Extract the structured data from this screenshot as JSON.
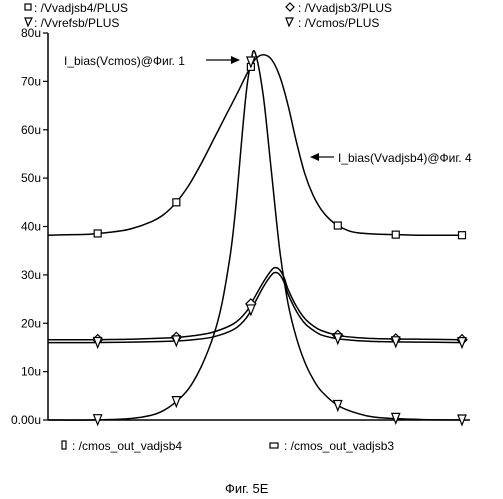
{
  "figure": {
    "caption": "Фиг. 5E"
  },
  "chart_data": {
    "type": "line",
    "ylim": [
      0,
      80
    ],
    "xlim": [
      0,
      1
    ],
    "y_ticks": [
      0,
      10,
      20,
      30,
      40,
      50,
      60,
      70,
      80
    ],
    "y_tick_labels": [
      "0.00u",
      "10u",
      "20u",
      "30u",
      "40u",
      "50u",
      "60u",
      "70u",
      "80u"
    ],
    "legend_top": [
      {
        "marker": "square",
        "label": ": /Vvadjsb4/PLUS"
      },
      {
        "marker": "diamond",
        "label": ": /Vvadjsb3/PLUS"
      },
      {
        "marker": "triangle-down",
        "label": ": /Vvrefsb/PLUS"
      },
      {
        "marker": "triangle-down",
        "label": ": /Vcmos/PLUS"
      }
    ],
    "legend_bottom": [
      {
        "marker": "rect-tall",
        "label": ": /cmos_out_vadjsb4"
      },
      {
        "marker": "rect-wide",
        "label": ": /cmos_out_vadjsb3"
      }
    ],
    "annotations": [
      {
        "text": "I_bias(Vcmos)@Фиг. 1",
        "target_series": "Vcmos"
      },
      {
        "text": "I_bias(Vvadjsb4)@Фиг. 4",
        "target_series": "Vvadjsb4"
      }
    ],
    "series": [
      {
        "name": "Vvadjsb4",
        "marker": "square",
        "x": [
          0.0,
          0.05,
          0.1,
          0.15,
          0.2,
          0.25,
          0.28,
          0.31,
          0.34,
          0.37,
          0.4,
          0.43,
          0.46,
          0.48,
          0.5,
          0.52,
          0.54,
          0.56,
          0.58,
          0.6,
          0.62,
          0.64,
          0.66,
          0.68,
          0.7,
          0.73,
          0.76,
          0.8,
          0.85,
          0.9,
          0.95,
          1.0
        ],
        "y": [
          38.2,
          38.3,
          38.4,
          38.8,
          39.5,
          41.0,
          42.5,
          45.0,
          48.5,
          53.0,
          58.0,
          63.0,
          68.0,
          71.5,
          74.5,
          75.5,
          74.5,
          71.0,
          65.0,
          57.5,
          51.0,
          46.5,
          43.5,
          41.5,
          40.2,
          39.0,
          38.6,
          38.4,
          38.3,
          38.2,
          38.2,
          38.2
        ],
        "marker_x": [
          0.12,
          0.31,
          0.49,
          0.7,
          0.84,
          1.0
        ]
      },
      {
        "name": "Vvadjsb3",
        "marker": "diamond",
        "x": [
          0.0,
          0.1,
          0.2,
          0.3,
          0.35,
          0.4,
          0.45,
          0.48,
          0.5,
          0.52,
          0.54,
          0.55,
          0.56,
          0.57,
          0.58,
          0.6,
          0.62,
          0.64,
          0.66,
          0.7,
          0.75,
          0.8,
          0.9,
          1.0
        ],
        "y": [
          16.6,
          16.6,
          16.7,
          17.0,
          17.4,
          18.2,
          20.0,
          22.5,
          25.5,
          28.5,
          31.0,
          31.5,
          31.0,
          29.5,
          27.0,
          23.5,
          21.0,
          19.5,
          18.5,
          17.5,
          17.0,
          16.8,
          16.7,
          16.6
        ],
        "marker_x": [
          0.12,
          0.31,
          0.49,
          0.7,
          0.84,
          1.0
        ]
      },
      {
        "name": "Vvrefsb",
        "marker": "triangle-down",
        "x": [
          0.0,
          0.1,
          0.2,
          0.3,
          0.35,
          0.4,
          0.45,
          0.48,
          0.5,
          0.52,
          0.54,
          0.55,
          0.56,
          0.57,
          0.58,
          0.6,
          0.62,
          0.64,
          0.66,
          0.7,
          0.75,
          0.8,
          0.9,
          1.0
        ],
        "y": [
          16.0,
          16.0,
          16.1,
          16.3,
          16.6,
          17.2,
          18.8,
          21.2,
          24.3,
          27.5,
          30.0,
          30.5,
          30.0,
          28.5,
          26.0,
          22.5,
          20.0,
          18.6,
          17.6,
          16.8,
          16.4,
          16.2,
          16.1,
          16.0
        ],
        "marker_x": [
          0.12,
          0.31,
          0.49,
          0.7,
          0.84,
          1.0
        ]
      },
      {
        "name": "Vcmos",
        "marker": "triangle-down",
        "x": [
          0.0,
          0.1,
          0.2,
          0.25,
          0.28,
          0.31,
          0.34,
          0.37,
          0.4,
          0.42,
          0.44,
          0.45,
          0.46,
          0.47,
          0.48,
          0.49,
          0.5,
          0.52,
          0.54,
          0.56,
          0.58,
          0.6,
          0.62,
          0.64,
          0.66,
          0.7,
          0.75,
          0.8,
          0.9,
          1.0
        ],
        "y": [
          0.0,
          0.0,
          0.3,
          1.0,
          2.0,
          3.8,
          6.5,
          11.0,
          17.5,
          24.0,
          34.0,
          41.0,
          50.0,
          60.0,
          68.5,
          74.0,
          76.0,
          67.0,
          51.0,
          35.0,
          24.0,
          17.0,
          12.0,
          8.5,
          6.0,
          3.0,
          1.3,
          0.5,
          0.1,
          0.0
        ],
        "marker_x": [
          0.12,
          0.31,
          0.49,
          0.7,
          0.84,
          1.0
        ]
      }
    ]
  }
}
